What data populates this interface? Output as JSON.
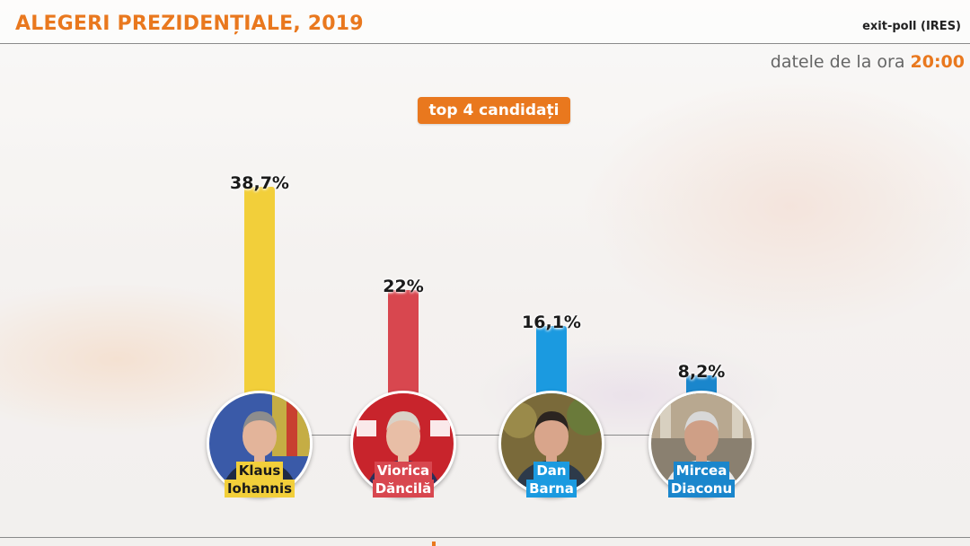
{
  "header": {
    "title": "ALEGERI PREZIDENȚIALE, 2019",
    "source": "exit-poll (IRES)",
    "time_prefix": "datele de la ora",
    "time": "20:00"
  },
  "badge": "top 4 candidați",
  "colors": {
    "accent": "#e9781e",
    "iohannis": "#f2cf3a",
    "dancila": "#d8474f",
    "barna": "#1b9ae0",
    "diaconu": "#1a86cc"
  },
  "chart_data": {
    "type": "bar",
    "categories": [
      "Klaus Iohannis",
      "Viorica Dăncilă",
      "Dan Barna",
      "Mircea Diaconu"
    ],
    "values": [
      38.7,
      22,
      16.1,
      8.2
    ],
    "value_labels": [
      "38,7%",
      "22%",
      "16,1%",
      "8,2%"
    ],
    "unit": "%",
    "ylim": [
      0,
      40
    ],
    "grid": false
  },
  "candidates": [
    {
      "first": "Klaus",
      "last": "Iohannis",
      "color": "#f2cf3a",
      "text_color": "#1a1a1a",
      "value": 38.7,
      "label": "38,7%",
      "icon": "portrait-iohannis-icon"
    },
    {
      "first": "Viorica",
      "last": "Dăncilă",
      "color": "#d8474f",
      "text_color": "#ffffff",
      "value": 22,
      "label": "22%",
      "icon": "portrait-dancila-icon"
    },
    {
      "first": "Dan",
      "last": "Barna",
      "color": "#1b9ae0",
      "text_color": "#ffffff",
      "value": 16.1,
      "label": "16,1%",
      "icon": "portrait-barna-icon"
    },
    {
      "first": "Mircea",
      "last": "Diaconu",
      "color": "#1a86cc",
      "text_color": "#ffffff",
      "value": 8.2,
      "label": "8,2%",
      "icon": "portrait-diaconu-icon"
    }
  ]
}
